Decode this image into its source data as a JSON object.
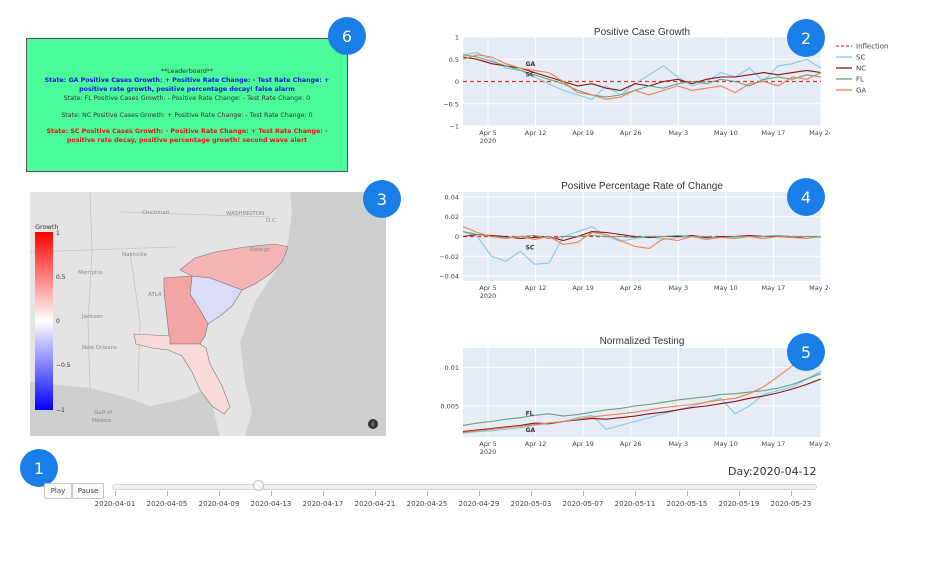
{
  "badges": [
    "1",
    "2",
    "3",
    "4",
    "5",
    "6"
  ],
  "leaderboard": {
    "title": "**Leaderboard**",
    "line1a": "State: GA   Positive Cases Growth: +  Positive Rate Change: -   Test Rate Change: +",
    "line1b": "positive rate growth, positive percentage decay! false alarm",
    "line2": "State: FL   Positive Cases Growth: -  Positive Rate Change: -   Test Rate Change: 0",
    "line3": "State: NC   Positive Cases Growth: +  Positive Rate Change: -   Test Rate Change: 0",
    "line4a": "State: SC   Positive Cases Growth: -  Positive Rate Change: +   Test Rate Change: -",
    "line4b": "positive rate decay, positive percentage growth! second wave alert",
    "colors": {
      "bg": "#4bfb9a",
      "ga": "#1414e0",
      "sc": "#f01010",
      "neutral": "#333333"
    }
  },
  "map": {
    "colorbar_title": "Growth",
    "colorbar_ticks": [
      "1",
      "0.5",
      "0",
      "−0.5",
      "−1"
    ],
    "places": [
      "Cincinnati",
      "WASHINGTON",
      "D.C.",
      "Nashville",
      "Raleigh",
      "Memphis",
      "ATLA",
      "Jackson",
      "New Orleans",
      "Gulf of",
      "Mexico"
    ],
    "state_colors": {
      "NC": "#f6b5b5",
      "SC": "#dcdcf6",
      "GA": "#f3a4a4",
      "FL": "#f9dada"
    },
    "info_icon": "info-icon"
  },
  "legend": {
    "items": [
      {
        "label": "Inflection",
        "color": "#e8332a",
        "dash": true
      },
      {
        "label": "SC",
        "color": "#87c8ee",
        "dash": false
      },
      {
        "label": "NC",
        "color": "#8b1010",
        "dash": false
      },
      {
        "label": "FL",
        "color": "#6aa276",
        "dash": false
      },
      {
        "label": "GA",
        "color": "#f08050",
        "dash": false
      }
    ]
  },
  "chart_data": [
    {
      "type": "line",
      "title": "Positive Case Growth",
      "xlabel": "",
      "ylabel": "",
      "x_ticks": [
        "Apr 5",
        "Apr 12",
        "Apr 19",
        "Apr 26",
        "May 3",
        "May 10",
        "May 17",
        "May 24"
      ],
      "x_year": "2020",
      "y_ticks": [
        "1",
        "0.5",
        "0",
        "−0.5",
        "−1"
      ],
      "ylim": [
        -1,
        1
      ],
      "annotations": [
        "GA",
        "SC"
      ],
      "inflection": 0,
      "series": [
        {
          "name": "SC",
          "values": [
            0.6,
            0.65,
            0.5,
            0.3,
            0.25,
            0.1,
            -0.05,
            -0.2,
            -0.3,
            -0.4,
            -0.1,
            -0.3,
            -0.05,
            0.15,
            0.35,
            0.1,
            -0.1,
            0.0,
            0.2,
            0.1,
            0.3,
            0.0,
            0.35,
            0.4,
            0.5,
            0.3
          ]
        },
        {
          "name": "NC",
          "values": [
            0.55,
            0.5,
            0.4,
            0.35,
            0.3,
            0.2,
            0.1,
            0.0,
            -0.1,
            -0.05,
            -0.15,
            -0.2,
            -0.05,
            -0.1,
            0.0,
            0.05,
            -0.05,
            0.05,
            0.1,
            0.1,
            0.15,
            0.2,
            0.15,
            0.2,
            0.25,
            0.2
          ]
        },
        {
          "name": "FL",
          "values": [
            0.6,
            0.55,
            0.45,
            0.35,
            0.25,
            0.15,
            0.05,
            -0.05,
            -0.2,
            -0.3,
            -0.35,
            -0.3,
            -0.2,
            -0.1,
            -0.15,
            -0.05,
            0.0,
            -0.05,
            0.05,
            0.0,
            -0.1,
            0.05,
            0.1,
            0.05,
            0.15,
            0.1
          ]
        },
        {
          "name": "GA",
          "values": [
            0.5,
            0.6,
            0.55,
            0.4,
            0.3,
            0.25,
            0.2,
            0.0,
            -0.25,
            -0.3,
            -0.4,
            -0.35,
            -0.2,
            -0.3,
            -0.2,
            -0.1,
            -0.2,
            -0.15,
            -0.1,
            -0.25,
            -0.05,
            0.0,
            -0.1,
            0.1,
            0.05,
            0.2
          ]
        }
      ]
    },
    {
      "type": "line",
      "title": "Positive Percentage Rate of Change",
      "xlabel": "",
      "ylabel": "",
      "x_ticks": [
        "Apr 5",
        "Apr 12",
        "Apr 19",
        "Apr 26",
        "May 3",
        "May 10",
        "May 17",
        "May 24"
      ],
      "x_year": "2020",
      "y_ticks": [
        "0.04",
        "0.02",
        "0",
        "−0.02",
        "−0.04"
      ],
      "ylim": [
        -0.045,
        0.045
      ],
      "annotations": [
        "SC"
      ],
      "inflection": 0,
      "series": [
        {
          "name": "SC",
          "values": [
            0.005,
            0.0,
            -0.02,
            -0.025,
            -0.015,
            -0.028,
            -0.027,
            0.0,
            0.005,
            0.01,
            0.0,
            -0.005,
            -0.002,
            0.0,
            -0.003,
            -0.001,
            0.0,
            -0.002,
            0.0,
            -0.001,
            0.0,
            -0.002,
            0.0,
            -0.001,
            0.0,
            -0.001
          ]
        },
        {
          "name": "NC",
          "values": [
            0.0,
            0.002,
            0.001,
            0.0,
            -0.002,
            -0.001,
            0.0,
            -0.004,
            0.0,
            0.005,
            0.004,
            0.002,
            0.0,
            -0.001,
            0.0,
            0.0,
            0.001,
            -0.001,
            0.0,
            0.0,
            0.001,
            0.0,
            0.0,
            -0.001,
            0.0,
            0.0
          ]
        },
        {
          "name": "FL",
          "values": [
            0.005,
            0.002,
            0.0,
            -0.001,
            0.0,
            0.001,
            -0.002,
            0.0,
            0.0,
            0.001,
            0.0,
            0.0,
            -0.001,
            0.0,
            0.0,
            0.001,
            0.0,
            0.0,
            -0.001,
            0.0,
            0.0,
            0.0,
            0.001,
            0.0,
            0.0,
            0.0
          ]
        },
        {
          "name": "GA",
          "values": [
            0.01,
            0.004,
            0.0,
            -0.002,
            0.0,
            -0.003,
            0.0,
            -0.008,
            -0.006,
            0.004,
            0.002,
            -0.004,
            -0.01,
            -0.012,
            -0.002,
            -0.004,
            0.0,
            -0.003,
            -0.001,
            -0.002,
            0.0,
            -0.002,
            0.0,
            -0.001,
            -0.002,
            0.0
          ]
        }
      ]
    },
    {
      "type": "line",
      "title": "Normalized Testing",
      "xlabel": "",
      "ylabel": "",
      "x_ticks": [
        "Apr 5",
        "Apr 12",
        "Apr 19",
        "Apr 26",
        "May 3",
        "May 10",
        "May 17",
        "May 24"
      ],
      "x_year": "2020",
      "y_ticks": [
        "0.01",
        "0.005"
      ],
      "ylim": [
        0.001,
        0.0125
      ],
      "annotations": [
        "FL",
        "GA"
      ],
      "series": [
        {
          "name": "SC",
          "values": [
            0.0015,
            0.0017,
            0.0018,
            0.002,
            0.0022,
            0.0025,
            0.0028,
            0.003,
            0.0035,
            0.0038,
            0.002,
            0.0025,
            0.003,
            0.0035,
            0.004,
            0.0045,
            0.005,
            0.0055,
            0.006,
            0.004,
            0.005,
            0.0065,
            0.007,
            0.0075,
            0.0085,
            0.0095
          ]
        },
        {
          "name": "NC",
          "values": [
            0.0017,
            0.0019,
            0.0021,
            0.0023,
            0.0025,
            0.0028,
            0.0027,
            0.003,
            0.0032,
            0.0034,
            0.0033,
            0.0035,
            0.0037,
            0.004,
            0.0042,
            0.0045,
            0.0048,
            0.005,
            0.0053,
            0.0056,
            0.006,
            0.0063,
            0.0067,
            0.0072,
            0.0078,
            0.0085
          ]
        },
        {
          "name": "FL",
          "values": [
            0.0025,
            0.0028,
            0.003,
            0.0033,
            0.0035,
            0.0038,
            0.004,
            0.0037,
            0.0039,
            0.0042,
            0.0045,
            0.0047,
            0.005,
            0.0052,
            0.0055,
            0.0058,
            0.006,
            0.0062,
            0.0065,
            0.0066,
            0.0068,
            0.007,
            0.0073,
            0.0078,
            0.0085,
            0.0092
          ]
        },
        {
          "name": "GA",
          "values": [
            0.0016,
            0.0018,
            0.002,
            0.0022,
            0.0024,
            0.0026,
            0.0028,
            0.003,
            0.0033,
            0.0036,
            0.0038,
            0.004,
            0.0042,
            0.0045,
            0.0048,
            0.005,
            0.0052,
            0.0055,
            0.0058,
            0.006,
            0.0066,
            0.0075,
            0.0088,
            0.0102,
            0.0111,
            0.0118
          ]
        }
      ]
    }
  ],
  "controls": {
    "play_label": "Play",
    "pause_label": "Pause",
    "day_label": "Day:2020-04-12",
    "slider_dates": [
      "2020-04-01",
      "2020-04-05",
      "2020-04-09",
      "2020-04-13",
      "2020-04-17",
      "2020-04-21",
      "2020-04-25",
      "2020-04-29",
      "2020-05-03",
      "2020-05-07",
      "2020-05-11",
      "2020-05-15",
      "2020-05-19",
      "2020-05-23"
    ],
    "slider_value": "2020-04-12"
  }
}
